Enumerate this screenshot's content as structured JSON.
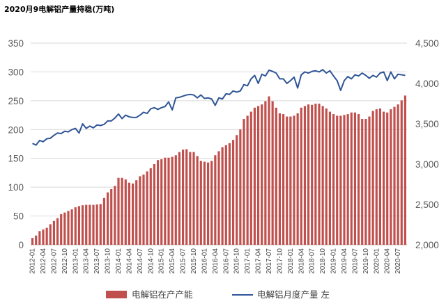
{
  "chart_data": {
    "type": "bar+line",
    "title": "2020月9电解铝产量持稳(万吨)",
    "categories": [
      "2012-01",
      "2012-02",
      "2012-03",
      "2012-04",
      "2012-05",
      "2012-06",
      "2012-07",
      "2012-08",
      "2012-09",
      "2012-10",
      "2012-11",
      "2012-12",
      "2013-01",
      "2013-02",
      "2013-03",
      "2013-04",
      "2013-05",
      "2013-06",
      "2013-07",
      "2013-08",
      "2013-09",
      "2013-10",
      "2013-11",
      "2013-12",
      "2014-01",
      "2014-02",
      "2014-03",
      "2014-04",
      "2014-05",
      "2014-06",
      "2014-07",
      "2014-08",
      "2014-09",
      "2014-10",
      "2014-11",
      "2014-12",
      "2015-01",
      "2015-02",
      "2015-03",
      "2015-04",
      "2015-05",
      "2015-06",
      "2015-07",
      "2015-08",
      "2015-09",
      "2015-10",
      "2015-11",
      "2015-12",
      "2016-01",
      "2016-02",
      "2016-03",
      "2016-04",
      "2016-05",
      "2016-06",
      "2016-07",
      "2016-08",
      "2016-09",
      "2016-10",
      "2016-11",
      "2016-12",
      "2017-01",
      "2017-02",
      "2017-03",
      "2017-04",
      "2017-05",
      "2017-06",
      "2017-07",
      "2017-08",
      "2017-09",
      "2017-10",
      "2017-11",
      "2017-12",
      "2018-01",
      "2018-02",
      "2018-03",
      "2018-04",
      "2018-05",
      "2018-06",
      "2018-07",
      "2018-08",
      "2018-09",
      "2018-10",
      "2018-11",
      "2018-12",
      "2019-01",
      "2019-02",
      "2019-03",
      "2019-04",
      "2019-05",
      "2019-06",
      "2019-07",
      "2019-08",
      "2019-09",
      "2019-10",
      "2019-11",
      "2019-12",
      "2020-01",
      "2020-02",
      "2020-03",
      "2020-04",
      "2020-05",
      "2020-06",
      "2020-07",
      "2020-08",
      "2020-09"
    ],
    "x_tick_labels": [
      "2012-01",
      "2012-04",
      "2012-07",
      "2012-10",
      "2013-01",
      "2013-04",
      "2013-07",
      "2013-10",
      "2014-01",
      "2014-04",
      "2014-07",
      "2014-10",
      "2015-01",
      "2015-04",
      "2015-07",
      "2015-10",
      "2016-01",
      "2016-04",
      "2016-07",
      "2016-10",
      "2017-01",
      "2017-04",
      "2017-07",
      "2017-10",
      "2018-01",
      "2018-04",
      "2018-07",
      "2018-10",
      "2019-01",
      "2019-04",
      "2019-07",
      "2019-10",
      "2020-01",
      "2020-04",
      "2020-07"
    ],
    "y_left": {
      "ylim": [
        0,
        350
      ],
      "ticks": [
        "0",
        "50",
        "100",
        "150",
        "200",
        "250",
        "300",
        "350"
      ]
    },
    "y_right": {
      "ylim": [
        2000,
        4500
      ],
      "ticks": [
        "2,000",
        "2,500",
        "3,000",
        "3,500",
        "4,000",
        "4,500"
      ]
    },
    "series": [
      {
        "name": "电解铝在产产能",
        "type": "bar",
        "axis": "right",
        "color": "#C0504D",
        "values": [
          2085,
          2115,
          2170,
          2190,
          2210,
          2255,
          2295,
          2330,
          2380,
          2400,
          2420,
          2440,
          2465,
          2480,
          2490,
          2495,
          2495,
          2495,
          2500,
          2505,
          2580,
          2650,
          2690,
          2730,
          2830,
          2830,
          2810,
          2770,
          2760,
          2800,
          2850,
          2870,
          2910,
          2950,
          3000,
          3050,
          3060,
          3080,
          3080,
          3090,
          3110,
          3150,
          3180,
          3185,
          3150,
          3150,
          3100,
          3040,
          3030,
          3020,
          3040,
          3110,
          3160,
          3210,
          3235,
          3260,
          3300,
          3360,
          3430,
          3560,
          3600,
          3650,
          3700,
          3720,
          3740,
          3780,
          3840,
          3780,
          3700,
          3630,
          3620,
          3590,
          3590,
          3600,
          3630,
          3700,
          3720,
          3740,
          3735,
          3750,
          3750,
          3720,
          3690,
          3650,
          3620,
          3600,
          3600,
          3610,
          3620,
          3640,
          3640,
          3620,
          3560,
          3560,
          3590,
          3660,
          3680,
          3690,
          3650,
          3640,
          3680,
          3710,
          3740,
          3790,
          3850
        ]
      },
      {
        "name": "电解铝月度产量 左",
        "type": "line",
        "axis": "left",
        "color": "#2F5597",
        "values": [
          176,
          173,
          181,
          179,
          184,
          185,
          190,
          194,
          193,
          197,
          196,
          200,
          202,
          194,
          210,
          202,
          206,
          203,
          208,
          207,
          209,
          215,
          215,
          220,
          227,
          219,
          225,
          222,
          221,
          221,
          225,
          230,
          228,
          236,
          238,
          235,
          238,
          240,
          248,
          234,
          255,
          256,
          258,
          260,
          261,
          260,
          255,
          260,
          254,
          255,
          253,
          242,
          255,
          253,
          262,
          261,
          267,
          265,
          267,
          278,
          276,
          288,
          294,
          280,
          296,
          293,
          303,
          301,
          298,
          288,
          288,
          280,
          285,
          291,
          272,
          295,
          300,
          298,
          301,
          302,
          300,
          304,
          298,
          302,
          293,
          285,
          268,
          285,
          292,
          288,
          295,
          293,
          298,
          294,
          289,
          294,
          291,
          298,
          300,
          285,
          300,
          288,
          296,
          295,
          294
        ]
      }
    ]
  },
  "legend": {
    "bar_label": "电解铝在产产能",
    "line_label": "电解铝月度产量 左"
  }
}
